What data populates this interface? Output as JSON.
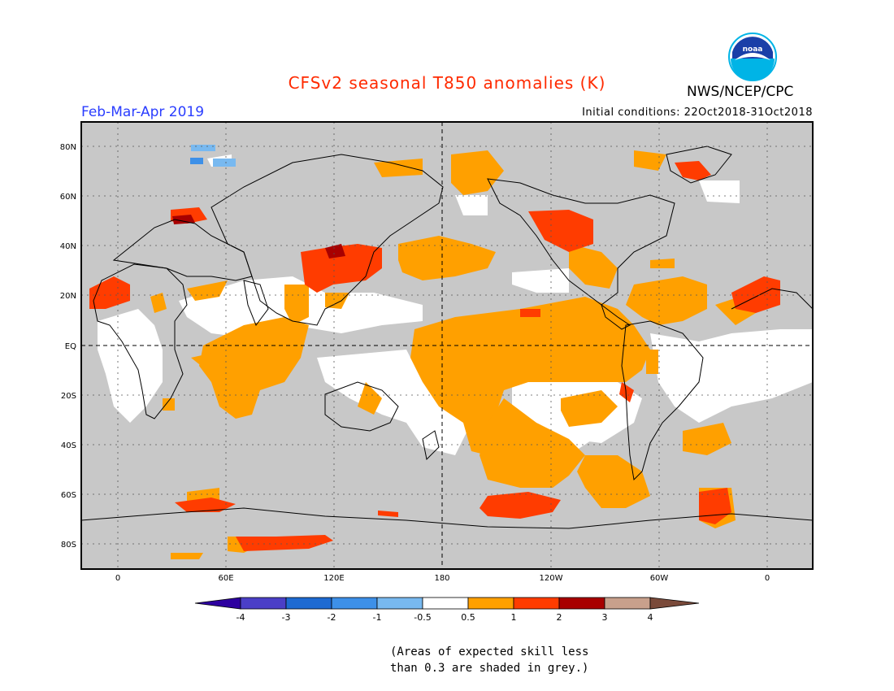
{
  "title": "CFSv2 seasonal T850 anomalies (K)",
  "period": "Feb-Mar-Apr 2019",
  "initial_conditions": "Initial conditions: 22Oct2018-31Oct2018",
  "agency": "NWS/NCEP/CPC",
  "logo_text": "noaa",
  "lat_labels": [
    "80N",
    "60N",
    "40N",
    "20N",
    "EQ",
    "20S",
    "40S",
    "60S",
    "80S"
  ],
  "lon_labels": [
    "0",
    "60E",
    "120E",
    "180",
    "120W",
    "60W",
    "0"
  ],
  "colorbar": {
    "tick_labels": [
      "-4",
      "-3",
      "-2",
      "-1",
      "-0.5",
      "0.5",
      "1",
      "2",
      "3",
      "4"
    ],
    "colors": [
      "#2d00a0",
      "#4b3fc7",
      "#1e6ad2",
      "#3d90e8",
      "#78b9f0",
      "#ffffff",
      "#ffa000",
      "#ff3c00",
      "#a80000",
      "#c8a08c",
      "#7a4a3a"
    ]
  },
  "skill_note": [
    "(Areas of expected skill less",
    "than 0.3 are shaded in grey.)"
  ],
  "colors": {
    "no_skill_grey": "#c8c8c8",
    "neutral": "#ffffff",
    "anom_0_5_to_1": "#ffa000",
    "anom_1_to_2": "#ff3c00",
    "anom_2_to_3": "#a80000",
    "anom_neg_0_5_to_1": "#78b9f0",
    "anom_neg_1_to_2": "#3d90e8"
  }
}
